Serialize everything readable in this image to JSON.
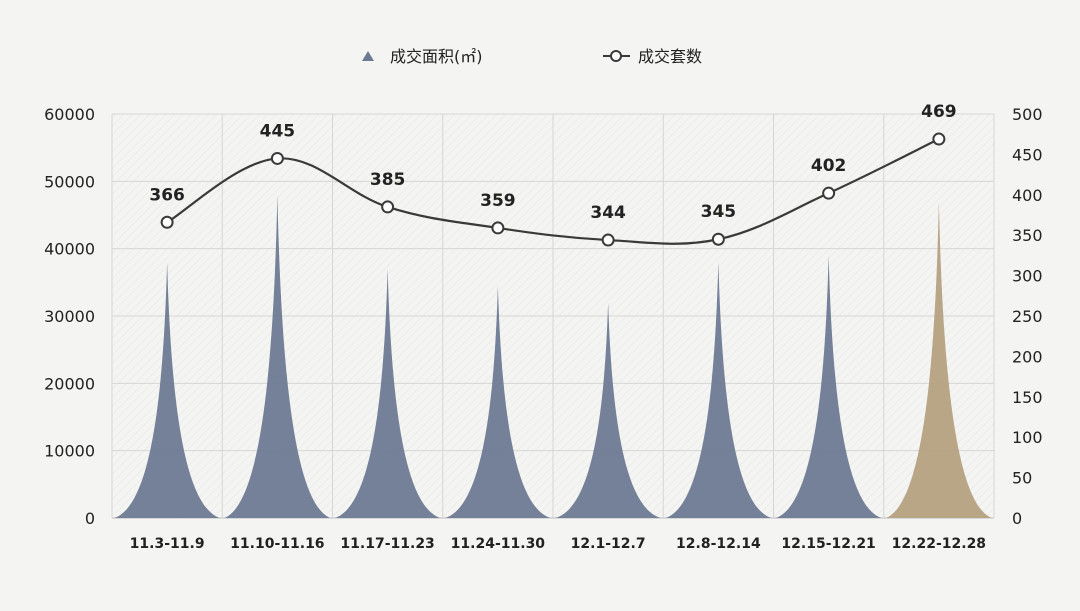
{
  "chart_data": {
    "type": "bar",
    "categories": [
      "11.3-11.9",
      "11.10-11.16",
      "11.17-11.23",
      "11.24-11.30",
      "12.1-12.7",
      "12.8-12.14",
      "12.15-12.21",
      "12.22-12.28"
    ],
    "series": [
      {
        "name": "成交面积(㎡)",
        "type": "bar",
        "axis": "left",
        "values": [
          38000,
          48000,
          37000,
          34500,
          32000,
          38000,
          39000,
          47000
        ]
      },
      {
        "name": "成交套数",
        "type": "line",
        "axis": "right",
        "values": [
          366,
          445,
          385,
          359,
          344,
          345,
          402,
          469
        ]
      }
    ],
    "y_left": {
      "ylim": [
        0,
        60000
      ],
      "ticks": [
        0,
        10000,
        20000,
        30000,
        40000,
        50000,
        60000
      ]
    },
    "y_right": {
      "ylim": [
        0,
        500
      ],
      "ticks": [
        0,
        50,
        100,
        150,
        200,
        250,
        300,
        350,
        400,
        450,
        500
      ]
    },
    "legend_position": "top-center",
    "grid": true,
    "colors": {
      "bar": "#6e7a92",
      "bar_highlight": "#b5a181",
      "line": "#3a3a3a",
      "marker_fill": "#ffffff"
    },
    "highlight_index": 7
  }
}
